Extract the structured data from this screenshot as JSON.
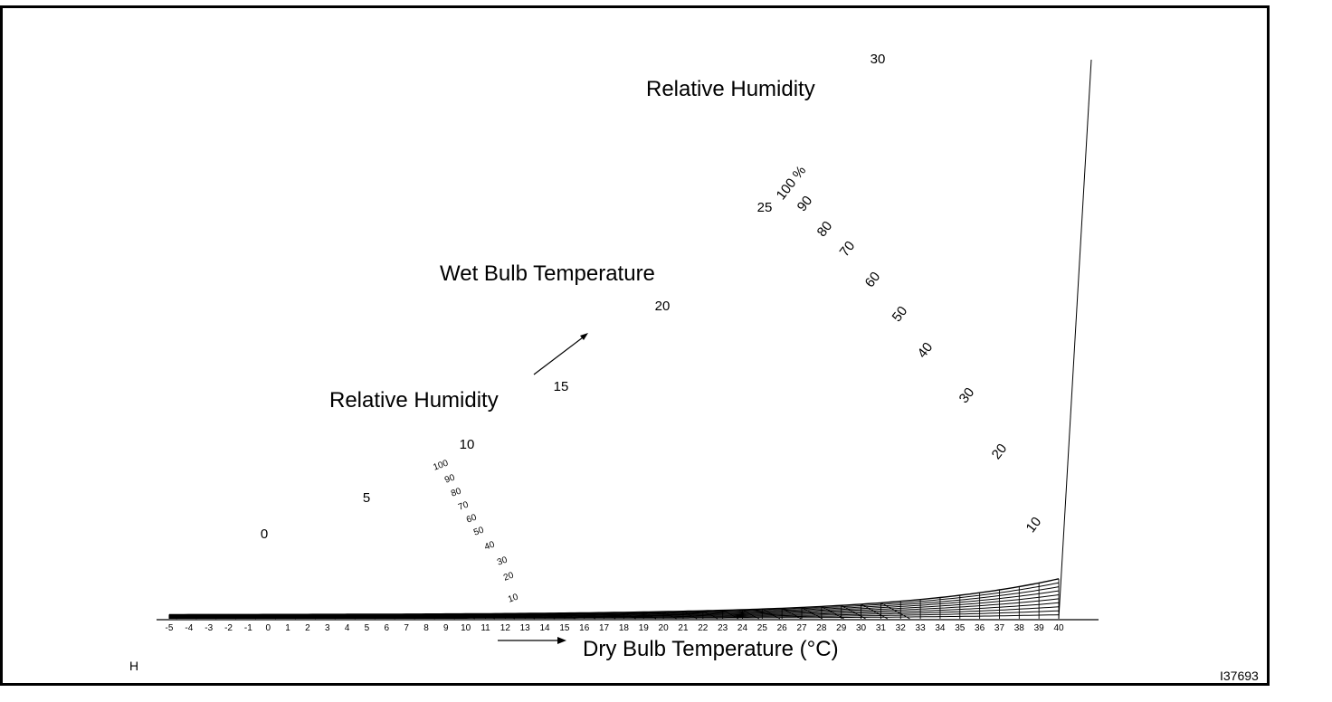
{
  "labels": {
    "rh_top": "Relative Humidity",
    "wet_bulb": "Wet Bulb Temperature",
    "rh_left": "Relative Humidity",
    "x_axis": "Dry Bulb Temperature  (°C)",
    "corner_left": "H",
    "figure_id": "I37693"
  },
  "chart_data": {
    "type": "psychrometric",
    "x_ticks": [
      "-5",
      "-4",
      "-3",
      "-2",
      "-1",
      "0",
      "1",
      "2",
      "3",
      "4",
      "5",
      "6",
      "7",
      "8",
      "9",
      "10",
      "11",
      "12",
      "13",
      "14",
      "15",
      "16",
      "17",
      "18",
      "19",
      "20",
      "21",
      "22",
      "23",
      "24",
      "25",
      "26",
      "27",
      "28",
      "29",
      "30",
      "31",
      "32",
      "33",
      "34",
      "35",
      "36",
      "37",
      "38",
      "39",
      "40"
    ],
    "x_range": [
      -5,
      40
    ],
    "wet_bulb_labels": [
      "0",
      "5",
      "10",
      "15",
      "20",
      "25",
      "30"
    ],
    "rh_upper_labels": [
      "100 %",
      "90",
      "80",
      "70",
      "60",
      "50",
      "40",
      "30",
      "20",
      "10"
    ],
    "rh_lower_labels": [
      "100",
      "90",
      "80",
      "70",
      "60",
      "50",
      "40",
      "30",
      "20",
      "10"
    ]
  }
}
